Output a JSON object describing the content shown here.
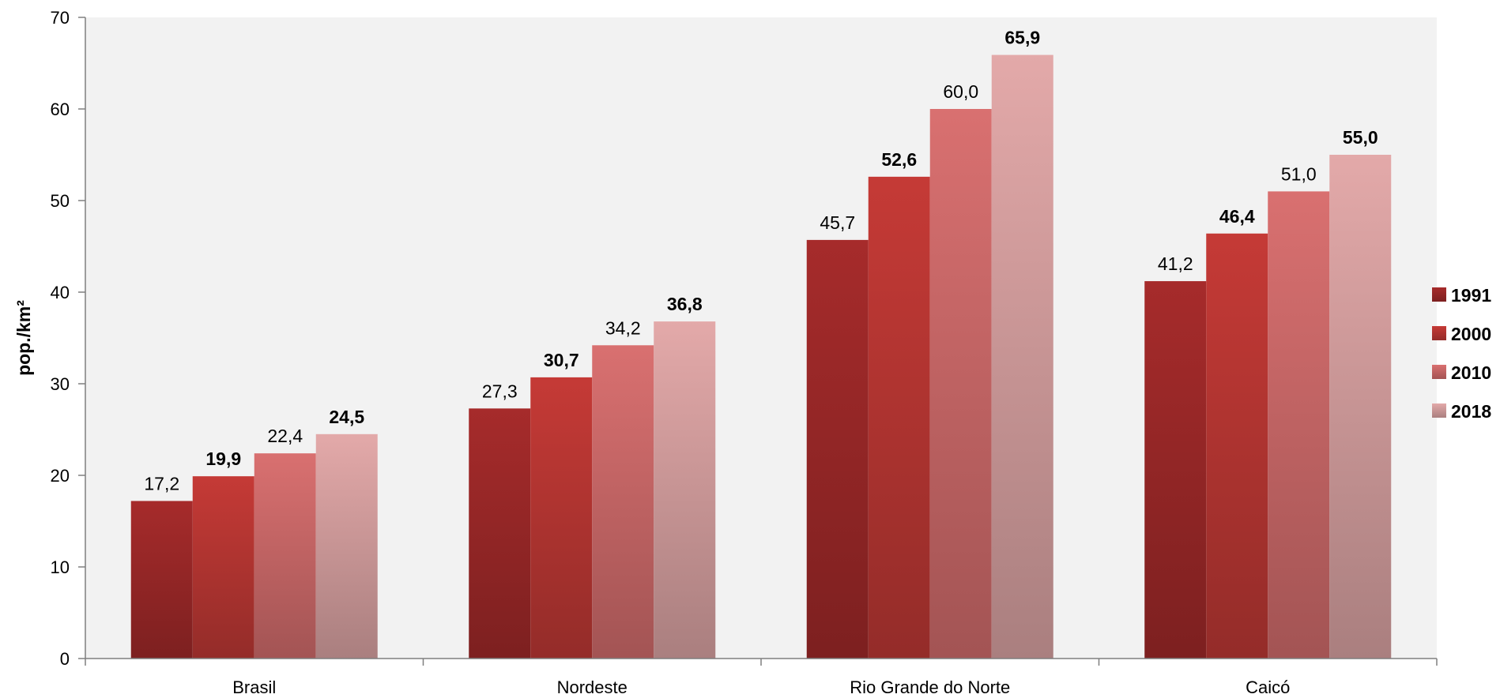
{
  "chart_data": {
    "type": "bar",
    "ylabel": "pop./km²",
    "ylim": [
      0,
      70
    ],
    "yticks": [
      "0",
      "10",
      "20",
      "30",
      "40",
      "50",
      "60",
      "70"
    ],
    "categories": [
      "Brasil",
      "Nordeste",
      "Rio Grande do Norte",
      "Caicó"
    ],
    "grid": false,
    "legend": "right",
    "series": [
      {
        "name": "1991",
        "values": [
          17.2,
          27.3,
          45.7,
          41.2
        ],
        "labels": [
          "17,2",
          "27,3",
          "45,7",
          "41,2"
        ],
        "label_bold": false,
        "color": "#a62b2b"
      },
      {
        "name": "2000",
        "values": [
          19.9,
          30.7,
          52.6,
          46.4
        ],
        "labels": [
          "19,9",
          "30,7",
          "52,6",
          "46,4"
        ],
        "label_bold": true,
        "color": "#c53a36"
      },
      {
        "name": "2010",
        "values": [
          22.4,
          34.2,
          60.0,
          51.0
        ],
        "labels": [
          "22,4",
          "34,2",
          "60,0",
          "51,0"
        ],
        "label_bold": false,
        "color": "#d97070"
      },
      {
        "name": "2018",
        "values": [
          24.5,
          36.8,
          65.9,
          55.0
        ],
        "labels": [
          "24,5",
          "36,8",
          "65,9",
          "55,0"
        ],
        "label_bold": true,
        "color": "#e3a9a9"
      }
    ]
  }
}
